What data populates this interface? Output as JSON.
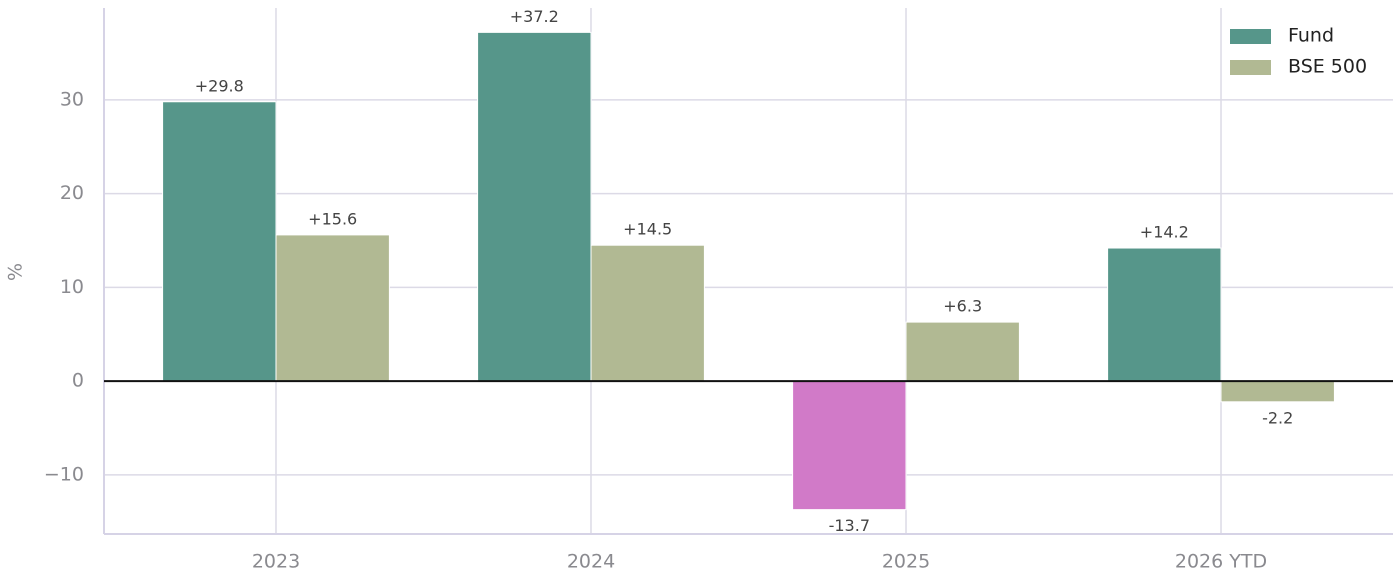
{
  "chart_data": {
    "type": "bar",
    "y_label": "%",
    "categories": [
      "2023",
      "2024",
      "2025",
      "2026 YTD"
    ],
    "series": [
      {
        "name": "Fund",
        "color": "#56968a",
        "negative_color": "#d17ac8",
        "values": [
          29.8,
          37.2,
          -13.7,
          14.2
        ],
        "value_labels": [
          "+29.8",
          "+37.2",
          "-13.7",
          "+14.2"
        ]
      },
      {
        "name": "BSE 500",
        "color": "#b1b993",
        "values": [
          15.6,
          14.5,
          6.3,
          -2.2
        ],
        "value_labels": [
          "+15.6",
          "+14.5",
          "+6.3",
          "-2.2"
        ]
      }
    ],
    "ylim": [
      -16.3,
      39.8
    ],
    "yticks": [
      {
        "value": -10,
        "label": "−10"
      },
      0,
      10,
      20,
      30
    ],
    "grid": true,
    "legend": "upper right"
  }
}
